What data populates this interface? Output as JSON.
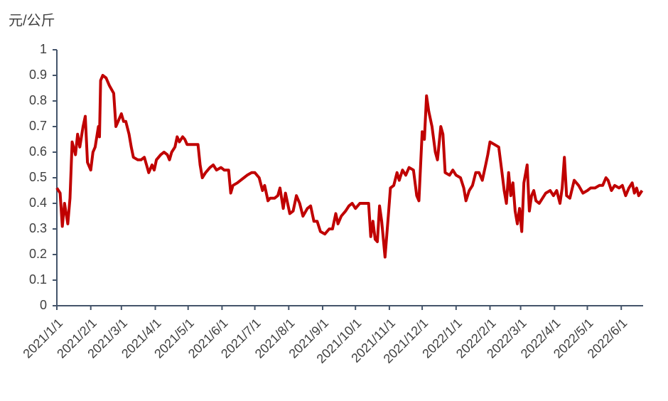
{
  "chart_data": {
    "type": "line",
    "y_label": "元/公斤",
    "x": [
      "2021/1/1",
      "2021/1/4",
      "2021/1/6",
      "2021/1/8",
      "2021/1/11",
      "2021/1/13",
      "2021/1/15",
      "2021/1/18",
      "2021/1/20",
      "2021/1/22",
      "2021/1/25",
      "2021/1/27",
      "2021/1/29",
      "2021/2/1",
      "2021/2/3",
      "2021/2/5",
      "2021/2/8",
      "2021/2/9",
      "2021/2/10",
      "2021/2/12",
      "2021/2/15",
      "2021/2/18",
      "2021/2/22",
      "2021/2/24",
      "2021/2/26",
      "2021/3/1",
      "2021/3/3",
      "2021/3/5",
      "2021/3/8",
      "2021/3/10",
      "2021/3/12",
      "2021/3/16",
      "2021/3/19",
      "2021/3/22",
      "2021/3/24",
      "2021/3/26",
      "2021/3/29",
      "2021/3/31",
      "2021/4/2",
      "2021/4/6",
      "2021/4/9",
      "2021/4/12",
      "2021/4/14",
      "2021/4/16",
      "2021/4/19",
      "2021/4/21",
      "2021/4/23",
      "2021/4/26",
      "2021/4/28",
      "2021/4/30",
      "2021/5/6",
      "2021/5/10",
      "2021/5/12",
      "2021/5/14",
      "2021/5/17",
      "2021/5/19",
      "2021/5/21",
      "2021/5/24",
      "2021/5/27",
      "2021/5/31",
      "2021/6/3",
      "2021/6/7",
      "2021/6/9",
      "2021/6/11",
      "2021/6/15",
      "2021/6/18",
      "2021/6/21",
      "2021/6/24",
      "2021/6/28",
      "2021/7/1",
      "2021/7/5",
      "2021/7/8",
      "2021/7/10",
      "2021/7/13",
      "2021/7/15",
      "2021/7/19",
      "2021/7/22",
      "2021/7/24",
      "2021/7/27",
      "2021/7/29",
      "2021/8/2",
      "2021/8/5",
      "2021/8/8",
      "2021/8/11",
      "2021/8/14",
      "2021/8/18",
      "2021/8/21",
      "2021/8/24",
      "2021/8/27",
      "2021/8/30",
      "2021/9/3",
      "2021/9/7",
      "2021/9/10",
      "2021/9/13",
      "2021/9/15",
      "2021/9/18",
      "2021/9/22",
      "2021/9/25",
      "2021/9/28",
      "2021/10/1",
      "2021/10/5",
      "2021/10/9",
      "2021/10/13",
      "2021/10/15",
      "2021/10/17",
      "2021/10/19",
      "2021/10/21",
      "2021/10/23",
      "2021/10/25",
      "2021/10/28",
      "2021/10/31",
      "2021/11/2",
      "2021/11/5",
      "2021/11/8",
      "2021/11/10",
      "2021/11/13",
      "2021/11/16",
      "2021/11/19",
      "2021/11/23",
      "2021/11/26",
      "2021/11/28",
      "2021/12/1",
      "2021/12/3",
      "2021/12/5",
      "2021/12/7",
      "2021/12/10",
      "2021/12/13",
      "2021/12/15",
      "2021/12/18",
      "2021/12/20",
      "2021/12/22",
      "2021/12/26",
      "2021/12/29",
      "2022/1/1",
      "2022/1/5",
      "2022/1/8",
      "2022/1/10",
      "2022/1/13",
      "2022/1/16",
      "2022/1/19",
      "2022/1/22",
      "2022/1/25",
      "2022/1/28",
      "2022/1/30",
      "2022/2/1",
      "2022/2/5",
      "2022/2/9",
      "2022/2/12",
      "2022/2/14",
      "2022/2/16",
      "2022/2/18",
      "2022/2/20",
      "2022/2/22",
      "2022/2/24",
      "2022/2/26",
      "2022/2/28",
      "2022/3/2",
      "2022/3/4",
      "2022/3/7",
      "2022/3/9",
      "2022/3/11",
      "2022/3/13",
      "2022/3/15",
      "2022/3/18",
      "2022/3/21",
      "2022/3/24",
      "2022/3/28",
      "2022/3/31",
      "2022/4/3",
      "2022/4/6",
      "2022/4/8",
      "2022/4/10",
      "2022/4/12",
      "2022/4/15",
      "2022/4/19",
      "2022/4/23",
      "2022/4/27",
      "2022/5/1",
      "2022/5/4",
      "2022/5/8",
      "2022/5/12",
      "2022/5/15",
      "2022/5/18",
      "2022/5/20",
      "2022/5/23",
      "2022/5/26",
      "2022/5/30",
      "2022/6/2",
      "2022/6/5",
      "2022/6/8",
      "2022/6/11",
      "2022/6/13",
      "2022/6/15",
      "2022/6/17",
      "2022/6/20"
    ],
    "series": [
      {
        "color": "#c00000",
        "values": [
          0.46,
          0.44,
          0.31,
          0.4,
          0.32,
          0.42,
          0.64,
          0.59,
          0.67,
          0.62,
          0.7,
          0.74,
          0.56,
          0.53,
          0.6,
          0.62,
          0.7,
          0.66,
          0.88,
          0.9,
          0.89,
          0.86,
          0.83,
          0.7,
          0.72,
          0.75,
          0.72,
          0.72,
          0.67,
          0.62,
          0.58,
          0.57,
          0.57,
          0.58,
          0.55,
          0.52,
          0.55,
          0.53,
          0.57,
          0.59,
          0.6,
          0.59,
          0.57,
          0.6,
          0.62,
          0.66,
          0.64,
          0.66,
          0.65,
          0.63,
          0.63,
          0.63,
          0.55,
          0.5,
          0.52,
          0.53,
          0.54,
          0.55,
          0.53,
          0.54,
          0.53,
          0.53,
          0.44,
          0.47,
          0.48,
          0.49,
          0.5,
          0.51,
          0.52,
          0.52,
          0.5,
          0.45,
          0.47,
          0.41,
          0.42,
          0.42,
          0.43,
          0.46,
          0.38,
          0.44,
          0.36,
          0.37,
          0.43,
          0.4,
          0.35,
          0.38,
          0.39,
          0.33,
          0.33,
          0.29,
          0.28,
          0.3,
          0.3,
          0.36,
          0.32,
          0.35,
          0.37,
          0.39,
          0.4,
          0.38,
          0.4,
          0.4,
          0.4,
          0.27,
          0.33,
          0.26,
          0.25,
          0.39,
          0.33,
          0.19,
          0.35,
          0.46,
          0.47,
          0.52,
          0.49,
          0.53,
          0.51,
          0.54,
          0.53,
          0.43,
          0.41,
          0.68,
          0.65,
          0.82,
          0.76,
          0.7,
          0.6,
          0.57,
          0.7,
          0.67,
          0.52,
          0.51,
          0.53,
          0.51,
          0.5,
          0.46,
          0.41,
          0.45,
          0.47,
          0.52,
          0.52,
          0.49,
          0.55,
          0.59,
          0.64,
          0.63,
          0.62,
          0.52,
          0.45,
          0.4,
          0.52,
          0.43,
          0.48,
          0.37,
          0.32,
          0.38,
          0.29,
          0.48,
          0.55,
          0.37,
          0.43,
          0.45,
          0.41,
          0.4,
          0.42,
          0.44,
          0.45,
          0.43,
          0.45,
          0.4,
          0.46,
          0.58,
          0.43,
          0.42,
          0.49,
          0.47,
          0.44,
          0.45,
          0.46,
          0.46,
          0.47,
          0.47,
          0.5,
          0.49,
          0.45,
          0.47,
          0.46,
          0.47,
          0.43,
          0.46,
          0.48,
          0.44,
          0.46,
          0.43,
          0.45
        ]
      }
    ],
    "xlim": [
      "2021/1/1",
      "2022/6/21"
    ],
    "xticks": [
      "2021/1/1",
      "2021/2/1",
      "2021/3/1",
      "2021/4/1",
      "2021/5/1",
      "2021/6/1",
      "2021/7/1",
      "2021/8/1",
      "2021/9/1",
      "2021/10/1",
      "2021/11/1",
      "2021/12/1",
      "2022/1/1",
      "2022/2/1",
      "2022/3/1",
      "2022/4/1",
      "2022/5/1",
      "2022/6/1"
    ],
    "ylim": [
      0,
      1
    ],
    "yticks": [
      0,
      0.1,
      0.2,
      0.3,
      0.4,
      0.5,
      0.6,
      0.7,
      0.8,
      0.9,
      1
    ]
  }
}
